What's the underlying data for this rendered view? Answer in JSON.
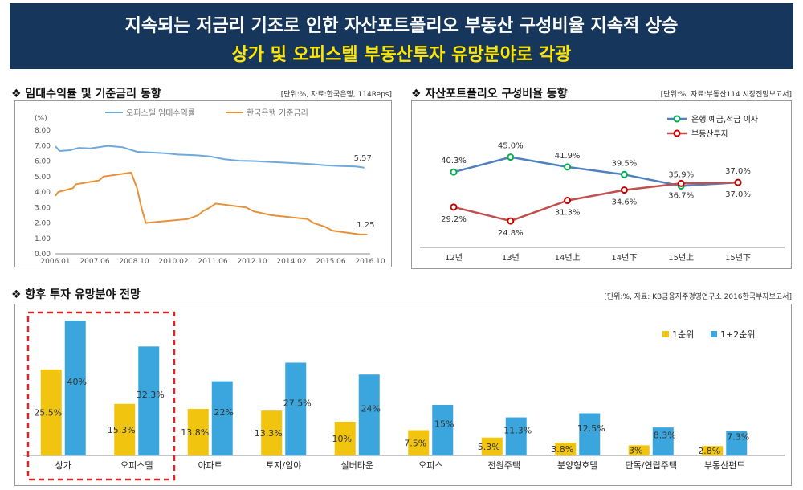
{
  "header": {
    "title": "지속되는 저금리 기조로 인한 자산포트폴리오 부동산 구성비율 지속적 상승",
    "subtitle": "상가 및 오피스텔 부동산투자 유망분야로 각광"
  },
  "colors": {
    "banner_bg": "#16365c",
    "title": "#ffffff",
    "subtitle": "#ffe600",
    "officetel_line": "#6fa8dc",
    "rate_line": "#e69138",
    "deposit_line": "#4f81bd",
    "realestate_line": "#c0504d",
    "rank1_bar": "#f1c40f",
    "rank12_bar": "#3aa6dd",
    "highlight_box": "#d62828"
  },
  "chart_data": [
    {
      "type": "line",
      "title": "❖ 임대수익률 및 기준금리 동향",
      "unit_note": "[단위:%, 자료:한국은행, 114Reps]",
      "ylabel": "(%)",
      "ylim": [
        0,
        8
      ],
      "yticks": [
        "0.00",
        "1.00",
        "2.00",
        "3.00",
        "4.00",
        "5.00",
        "6.00",
        "7.00",
        "8.00"
      ],
      "xtick_labels": [
        "2006.01",
        "2007.06",
        "2008.10",
        "2010.02",
        "2011.06",
        "2012.10",
        "2014.02",
        "2015.06",
        "2016.10"
      ],
      "x_range": [
        2006.0,
        2016.8
      ],
      "series": [
        {
          "name": "오피스텔 임대수익률",
          "end_label": "5.57",
          "points": [
            [
              2006.0,
              6.95
            ],
            [
              2006.15,
              6.65
            ],
            [
              2006.5,
              6.7
            ],
            [
              2006.8,
              6.85
            ],
            [
              2007.2,
              6.82
            ],
            [
              2007.8,
              6.98
            ],
            [
              2008.3,
              6.9
            ],
            [
              2008.8,
              6.6
            ],
            [
              2009.3,
              6.55
            ],
            [
              2009.8,
              6.5
            ],
            [
              2010.2,
              6.42
            ],
            [
              2010.8,
              6.38
            ],
            [
              2011.3,
              6.3
            ],
            [
              2011.8,
              6.12
            ],
            [
              2012.3,
              6.02
            ],
            [
              2012.8,
              6.0
            ],
            [
              2013.3,
              5.95
            ],
            [
              2013.8,
              5.9
            ],
            [
              2014.3,
              5.85
            ],
            [
              2014.8,
              5.8
            ],
            [
              2015.3,
              5.72
            ],
            [
              2015.8,
              5.68
            ],
            [
              2016.3,
              5.65
            ],
            [
              2016.6,
              5.57
            ]
          ]
        },
        {
          "name": "한국은행 기준금리",
          "end_label": "1.25",
          "points": [
            [
              2006.0,
              3.75
            ],
            [
              2006.1,
              4.0
            ],
            [
              2006.6,
              4.25
            ],
            [
              2006.7,
              4.5
            ],
            [
              2007.5,
              4.75
            ],
            [
              2007.65,
              5.0
            ],
            [
              2008.6,
              5.25
            ],
            [
              2008.8,
              4.25
            ],
            [
              2008.95,
              3.0
            ],
            [
              2009.1,
              2.0
            ],
            [
              2010.55,
              2.25
            ],
            [
              2010.9,
              2.5
            ],
            [
              2011.05,
              2.75
            ],
            [
              2011.3,
              3.0
            ],
            [
              2011.5,
              3.25
            ],
            [
              2012.55,
              3.0
            ],
            [
              2012.8,
              2.75
            ],
            [
              2013.4,
              2.5
            ],
            [
              2014.65,
              2.25
            ],
            [
              2014.85,
              2.0
            ],
            [
              2015.25,
              1.75
            ],
            [
              2015.5,
              1.5
            ],
            [
              2016.45,
              1.25
            ],
            [
              2016.7,
              1.25
            ]
          ]
        }
      ]
    },
    {
      "type": "line",
      "title": "❖ 자산포트폴리오 구성비율 동향",
      "unit_note": "[단위:%, 자료:부동산114 시장전망보고서]",
      "categories": [
        "12년",
        "13년",
        "14년上",
        "14년下",
        "15년上",
        "15년下"
      ],
      "series": [
        {
          "name": "은행 예금,적금 이자",
          "values": [
            40.3,
            45.0,
            41.9,
            39.5,
            35.9,
            37.0
          ],
          "labels": [
            "40.3%",
            "45.0%",
            "41.9%",
            "39.5%",
            "35.9%",
            "37.0%"
          ]
        },
        {
          "name": "부동산투자",
          "values": [
            29.2,
            24.8,
            31.3,
            34.6,
            36.7,
            37.0
          ],
          "labels": [
            "29.2%",
            "24.8%",
            "31.3%",
            "34.6%",
            "36.7%",
            "37.0%"
          ]
        }
      ]
    },
    {
      "type": "bar",
      "title": "❖ 향후 투자 유망분야 전망",
      "unit_note": "[단위:%, 자료: KB금융지주경영연구소 2016한국부자보고서]",
      "categories": [
        "상가",
        "오피스텔",
        "아파트",
        "토지/임야",
        "실버타운",
        "오피스",
        "전원주택",
        "분양형호텔",
        "단독/연립주택",
        "부동산펀드"
      ],
      "ylim": [
        0,
        40
      ],
      "series": [
        {
          "name": "1순위",
          "values": [
            25.5,
            15.3,
            13.8,
            13.3,
            10,
            7.5,
            5.3,
            3.8,
            3,
            2.8
          ],
          "labels": [
            "25.5%",
            "15.3%",
            "13.8%",
            "13.3%",
            "10%",
            "7.5%",
            "5.3%",
            "3.8%",
            "3%",
            "2.8%"
          ]
        },
        {
          "name": "1+2순위",
          "values": [
            40,
            32.3,
            22,
            27.5,
            24,
            15,
            11.3,
            12.5,
            8.3,
            7.3
          ],
          "labels": [
            "40%",
            "32.3%",
            "22%",
            "27.5%",
            "24%",
            "15%",
            "11.3%",
            "12.5%",
            "8.3%",
            "7.3%"
          ]
        }
      ],
      "highlighted_categories": [
        "상가",
        "오피스텔"
      ]
    }
  ]
}
